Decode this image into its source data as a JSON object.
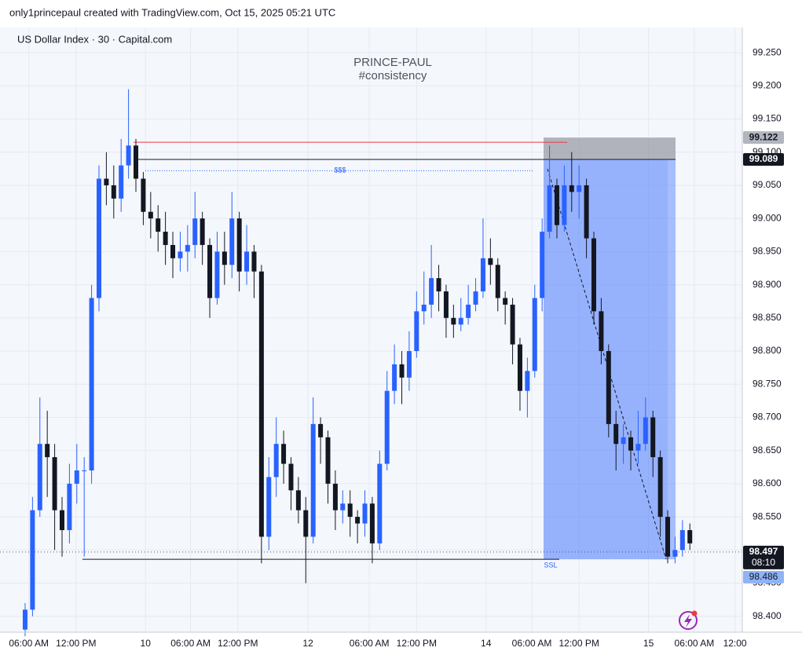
{
  "chart_data": {
    "type": "candlestick",
    "header": "only1princepaul created with TradingView.com, Oct 15, 2025 05:21 UTC",
    "title": "US Dollar Index · 30 · Capital.com",
    "watermark": [
      "PRINCE-PAUL",
      "#consistency"
    ],
    "up_color": "#2962ff",
    "down_color": "#131722",
    "grid": true,
    "open": [
      98.38,
      98.41,
      98.56,
      98.66,
      98.64,
      98.56,
      98.53,
      98.6,
      98.62,
      98.62,
      98.88,
      99.06,
      99.05,
      99.03,
      99.08,
      99.11,
      99.06,
      99.01,
      99.0,
      98.98,
      98.96,
      98.94,
      98.95,
      98.96,
      99.0,
      98.96,
      98.88,
      98.95,
      98.93,
      99.0,
      98.92,
      98.95,
      98.92,
      98.52,
      98.61,
      98.66,
      98.63,
      98.59,
      98.56,
      98.52,
      98.69,
      98.67,
      98.6,
      98.56,
      98.57,
      98.55,
      98.54,
      98.57,
      98.51,
      98.63,
      98.74,
      98.78,
      98.76,
      98.8,
      98.86,
      98.87,
      98.91,
      98.89,
      98.85,
      98.84,
      98.85,
      98.87,
      98.89,
      98.94,
      98.93,
      98.88,
      98.87,
      98.81,
      98.74,
      98.77,
      98.88,
      98.98,
      99.05,
      98.99,
      99.05,
      99.04,
      99.05,
      98.97,
      98.86,
      98.8,
      98.69,
      98.66,
      98.67,
      98.65,
      98.66,
      98.7,
      98.64,
      98.55,
      98.49,
      98.5,
      98.53
    ],
    "high": [
      98.42,
      98.58,
      98.73,
      98.71,
      98.66,
      98.58,
      98.63,
      98.66,
      98.64,
      98.9,
      99.08,
      99.1,
      99.08,
      99.12,
      99.195,
      99.12,
      99.07,
      99.04,
      99.02,
      99.01,
      98.98,
      98.98,
      98.99,
      99.04,
      99.01,
      98.97,
      98.98,
      98.98,
      99.04,
      99.01,
      98.99,
      98.96,
      98.93,
      98.64,
      98.7,
      98.68,
      98.64,
      98.61,
      98.58,
      98.73,
      98.7,
      98.68,
      98.62,
      98.59,
      98.59,
      98.56,
      98.59,
      98.58,
      98.65,
      98.77,
      98.81,
      98.8,
      98.83,
      98.89,
      98.92,
      98.96,
      98.93,
      98.9,
      98.87,
      98.88,
      98.9,
      98.91,
      99.0,
      98.97,
      98.94,
      98.89,
      98.88,
      98.82,
      98.79,
      98.9,
      99.0,
      99.11,
      99.06,
      99.08,
      99.1,
      99.08,
      99.06,
      98.98,
      98.88,
      98.81,
      98.71,
      98.69,
      98.68,
      98.71,
      98.73,
      98.71,
      98.65,
      98.56,
      98.52,
      98.545,
      98.54
    ],
    "low": [
      98.37,
      98.4,
      98.55,
      98.58,
      98.5,
      98.49,
      98.51,
      98.57,
      98.49,
      98.6,
      98.86,
      99.02,
      99.0,
      99.01,
      99.06,
      99.04,
      98.99,
      98.97,
      98.95,
      98.93,
      98.91,
      98.92,
      98.92,
      98.94,
      98.93,
      98.85,
      98.87,
      98.9,
      98.91,
      98.89,
      98.9,
      98.88,
      98.48,
      98.5,
      98.58,
      98.6,
      98.56,
      98.54,
      98.45,
      98.51,
      98.63,
      98.57,
      98.53,
      98.54,
      98.52,
      98.51,
      98.52,
      98.48,
      98.5,
      98.62,
      98.72,
      98.72,
      98.74,
      98.79,
      98.84,
      98.85,
      98.86,
      98.82,
      98.82,
      98.83,
      98.84,
      98.86,
      98.88,
      98.9,
      98.86,
      98.84,
      98.78,
      98.71,
      98.7,
      98.76,
      98.86,
      98.97,
      98.97,
      98.98,
      99.01,
      99.0,
      98.94,
      98.84,
      98.78,
      98.67,
      98.62,
      98.63,
      98.62,
      98.63,
      98.65,
      98.61,
      98.52,
      98.48,
      98.48,
      98.49,
      98.5
    ],
    "close": [
      98.41,
      98.56,
      98.66,
      98.64,
      98.56,
      98.53,
      98.6,
      98.62,
      98.62,
      98.88,
      99.06,
      99.05,
      99.03,
      99.08,
      99.11,
      99.06,
      99.01,
      99.0,
      98.98,
      98.96,
      98.94,
      98.95,
      98.96,
      99.0,
      98.96,
      98.88,
      98.95,
      98.93,
      99.0,
      98.92,
      98.95,
      98.92,
      98.52,
      98.61,
      98.66,
      98.63,
      98.59,
      98.56,
      98.52,
      98.69,
      98.67,
      98.6,
      98.56,
      98.57,
      98.55,
      98.54,
      98.57,
      98.51,
      98.63,
      98.74,
      98.78,
      98.76,
      98.8,
      98.86,
      98.87,
      98.91,
      98.89,
      98.85,
      98.84,
      98.85,
      98.87,
      98.89,
      98.94,
      98.93,
      98.88,
      98.87,
      98.81,
      98.74,
      98.77,
      98.88,
      98.98,
      99.05,
      98.99,
      99.05,
      99.04,
      99.05,
      98.97,
      98.86,
      98.8,
      98.69,
      98.66,
      98.67,
      98.65,
      98.66,
      98.7,
      98.64,
      98.55,
      98.49,
      98.5,
      98.53,
      98.51
    ],
    "ylim": [
      98.376,
      99.288
    ],
    "yticks": [
      {
        "value": 98.4,
        "label": "98.400"
      },
      {
        "value": 98.45,
        "label": "98.450"
      },
      {
        "value": 98.5,
        "label": "98.500"
      },
      {
        "value": 98.55,
        "label": "98.550"
      },
      {
        "value": 98.6,
        "label": "98.600"
      },
      {
        "value": 98.65,
        "label": "98.650"
      },
      {
        "value": 98.7,
        "label": "98.700"
      },
      {
        "value": 98.75,
        "label": "98.750"
      },
      {
        "value": 98.8,
        "label": "98.800"
      },
      {
        "value": 98.85,
        "label": "98.850"
      },
      {
        "value": 98.9,
        "label": "98.900"
      },
      {
        "value": 98.95,
        "label": "98.950"
      },
      {
        "value": 99.0,
        "label": "99.000"
      },
      {
        "value": 99.05,
        "label": "99.050"
      },
      {
        "value": 99.1,
        "label": "99.100"
      },
      {
        "value": 99.15,
        "label": "99.150"
      },
      {
        "value": 99.2,
        "label": "99.200"
      },
      {
        "value": 99.25,
        "label": "99.250"
      }
    ],
    "xlim": [
      -3.4,
      97.1
    ],
    "xticks": [
      {
        "value": 0.5,
        "label": "06:00 AM"
      },
      {
        "value": 6.9,
        "label": "12:00 PM"
      },
      {
        "value": 16.3,
        "label": "10"
      },
      {
        "value": 22.4,
        "label": "06:00 AM"
      },
      {
        "value": 28.8,
        "label": "12:00 PM"
      },
      {
        "value": 38.3,
        "label": "12"
      },
      {
        "value": 46.6,
        "label": "06:00 AM"
      },
      {
        "value": 53,
        "label": "12:00 PM"
      },
      {
        "value": 62.4,
        "label": "14"
      },
      {
        "value": 68.6,
        "label": "06:00 AM"
      },
      {
        "value": 75,
        "label": "12:00 PM"
      },
      {
        "value": 84.4,
        "label": "15"
      },
      {
        "value": 90.6,
        "label": "06:00 AM"
      },
      {
        "value": 96.1,
        "label": "12:00"
      }
    ],
    "levels": {
      "stop": {
        "value": 99.122,
        "label": "99.122"
      },
      "entry": {
        "value": 99.089,
        "label": "99.089"
      },
      "last": {
        "value": 98.497,
        "label": "98.497"
      },
      "target": {
        "value": 98.486,
        "label": "98.486"
      }
    },
    "countdown": "08:10",
    "red_level": 99.115,
    "annotations": [
      {
        "text": "$$$",
        "value": 99.072
      },
      {
        "text": "SSL",
        "value": 98.486
      }
    ]
  }
}
